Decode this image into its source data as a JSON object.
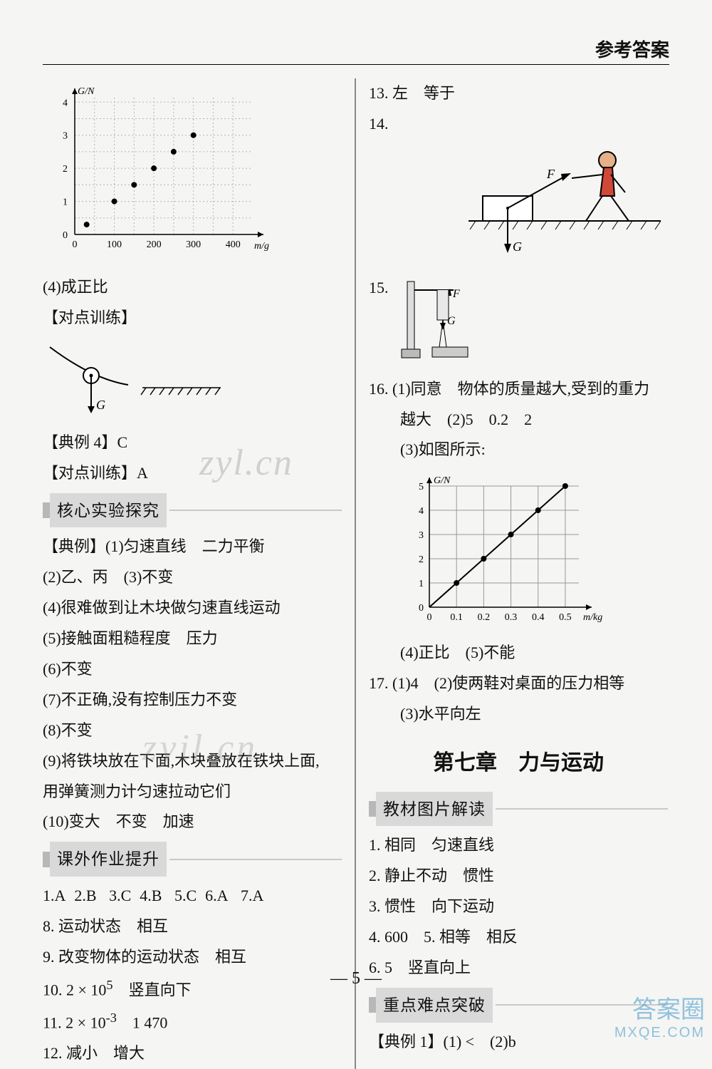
{
  "header": {
    "title": "参考答案"
  },
  "page_number": "— 5 —",
  "watermarks": {
    "w1": "zyl.cn",
    "w2": "zyil.cn",
    "brand": "答案圈",
    "url": "MXQE.COM"
  },
  "left": {
    "chart1": {
      "type": "scatter",
      "xlabel": "m/g",
      "ylabel": "G/N",
      "xlim": [
        0,
        450
      ],
      "ylim": [
        0,
        4.2
      ],
      "xticks": [
        0,
        100,
        200,
        300,
        400
      ],
      "yticks": [
        0,
        1,
        2,
        3,
        4
      ],
      "points_x": [
        30,
        100,
        150,
        200,
        250,
        300
      ],
      "points_y": [
        0.3,
        1.0,
        1.5,
        2.0,
        2.5,
        3.0
      ],
      "grid_color": "#b5b5b5",
      "axis_color": "#000",
      "point_color": "#000",
      "point_r": 4,
      "label_fontsize": 14
    },
    "l4": "(4)成正比",
    "dd1": "【对点训练】",
    "pendulum_label": "G",
    "ex4": "【典例 4】C",
    "dd2": "【对点训练】A",
    "sec1": "核心实验探究",
    "ex_a": "【典例】(1)匀速直线　二力平衡",
    "a2": "(2)乙、丙　(3)不变",
    "a4": "(4)很难做到让木块做匀速直线运动",
    "a5": "(5)接触面粗糙程度　压力",
    "a6": "(6)不变",
    "a7": "(7)不正确,没有控制压力不变",
    "a8": "(8)不变",
    "a9a": "(9)将铁块放在下面,木块叠放在铁块上面,",
    "a9b": "用弹簧测力计匀速拉动它们",
    "a10": "(10)变大　不变　加速",
    "sec2": "课外作业提升",
    "row1": {
      "q1": "1.A",
      "q2": "2.B",
      "q3": "3.C",
      "q4": "4.B",
      "q5": "5.C",
      "q6": "6.A",
      "q7": "7.A"
    },
    "q8": "8. 运动状态　相互",
    "q9": "9. 改变物体的运动状态　相互",
    "q10_a": "10. 2 × 10",
    "q10_exp": "5",
    "q10_b": "　竖直向下",
    "q11_a": "11. 2 × 10",
    "q11_exp": "-3",
    "q11_b": "　1 470",
    "q12": "12. 减小　增大"
  },
  "right": {
    "q13": "13. 左　等于",
    "q14": "14.",
    "fig14": {
      "F": "F",
      "G": "G",
      "box_color": "#fff",
      "line_color": "#000",
      "hatch_color": "#888"
    },
    "q15": "15.",
    "fig15": {
      "F": "F",
      "G": "G"
    },
    "q16a": "16. (1)同意　物体的质量越大,受到的重力",
    "q16b": "越大　(2)5　0.2　2",
    "q16c": "(3)如图所示:",
    "chart2": {
      "type": "line",
      "xlabel": "m/kg",
      "ylabel": "G/N",
      "xlim": [
        0,
        0.55
      ],
      "ylim": [
        0,
        5
      ],
      "xticks_labels": [
        "0",
        "0.1",
        "0.2",
        "0.3",
        "0.4",
        "0.5"
      ],
      "yticks": [
        0,
        1,
        2,
        3,
        4,
        5
      ],
      "points_x": [
        0,
        0.1,
        0.2,
        0.3,
        0.4,
        0.5
      ],
      "points_y": [
        0,
        1,
        2,
        3,
        4,
        5
      ],
      "grid_color": "#999",
      "axis_color": "#000",
      "point_color": "#000",
      "line_color": "#000",
      "point_r": 4,
      "label_fontsize": 14
    },
    "q16d": "(4)正比　(5)不能",
    "q17a": "17. (1)4　(2)使两鞋对桌面的压力相等",
    "q17b": "(3)水平向左",
    "chapter": "第七章　力与运动",
    "sec3": "教材图片解读",
    "t1": "1. 相同　匀速直线",
    "t2": "2. 静止不动　惯性",
    "t3": "3. 惯性　向下运动",
    "t4": "4. 600　5. 相等　相反",
    "t6": "6. 5　竖直向上",
    "sec4": "重点难点突破",
    "ex1": "【典例 1】(1) <　(2)b"
  }
}
